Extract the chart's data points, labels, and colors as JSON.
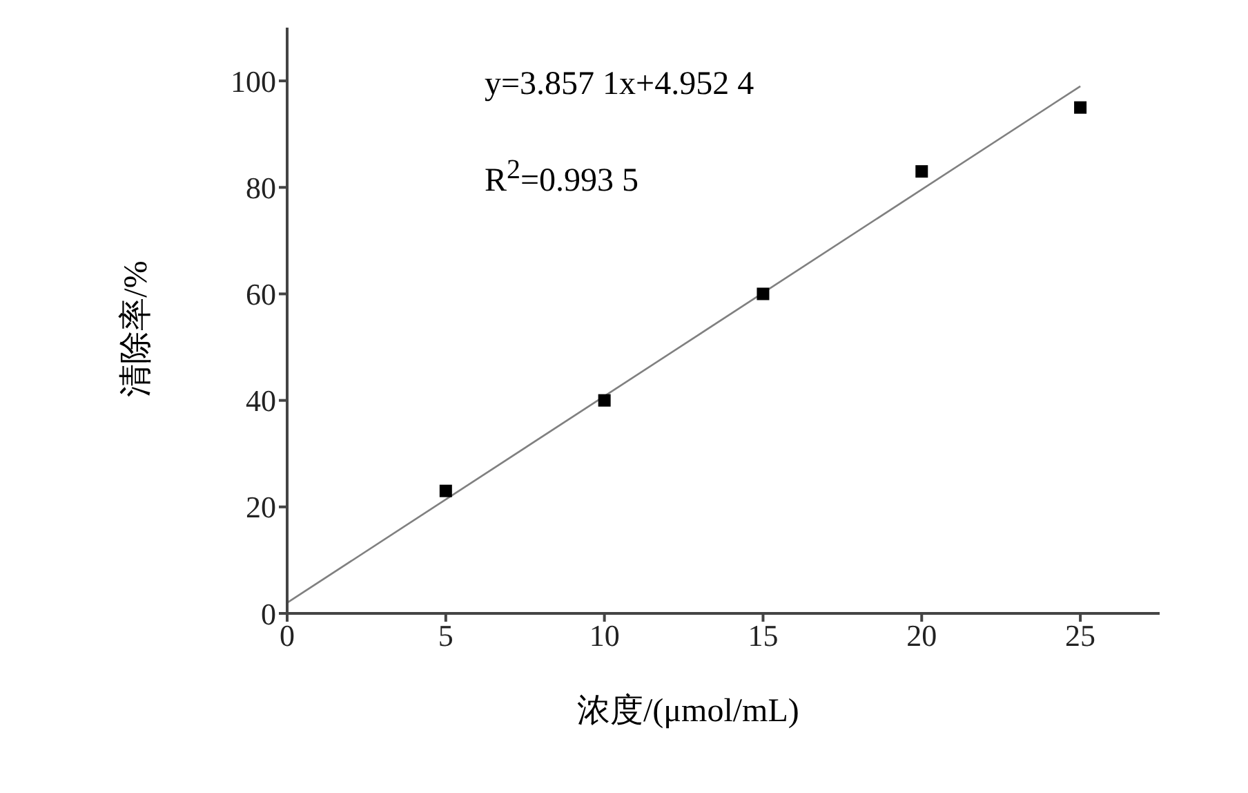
{
  "chart_data": {
    "type": "scatter",
    "xlabel": "浓度/(μmol/mL)",
    "ylabel": "清除率/%",
    "annotations": [
      "y=3.857 1x+4.952 4",
      "R$^{2}$=0.993 5"
    ],
    "x": [
      5,
      10,
      15,
      20,
      25
    ],
    "series": [
      {
        "color": "#000000",
        "marker": "square",
        "values": [
          23,
          40,
          60,
          83,
          95
        ]
      },
      {
        "type": "line",
        "color": "#808080",
        "marker": "none",
        "x": [
          0,
          25
        ],
        "values": [
          2,
          99
        ]
      }
    ],
    "xlim": [
      0,
      27.5
    ],
    "xticks": [
      0,
      5,
      10,
      15,
      20,
      25
    ],
    "ylim": [
      0,
      110
    ],
    "yticks": [
      0,
      20,
      40,
      60,
      80,
      100
    ],
    "grid": false,
    "legend": false
  }
}
